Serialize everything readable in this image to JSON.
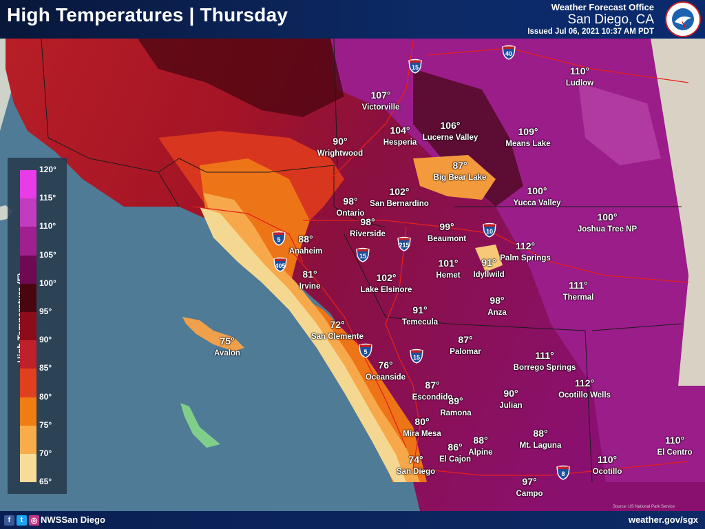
{
  "header": {
    "title": "High Temperatures  |  Thursday",
    "office": "Weather Forecast Office",
    "city": "San Diego, CA",
    "issued": "Issued Jul 06, 2021 10:37 AM PDT"
  },
  "logo": {
    "name": "nws-logo",
    "ring_text": "NATIONAL WEATHER SERVICE"
  },
  "legend": {
    "title": "High Temperature (F)",
    "ticks": [
      "120°",
      "115°",
      "110°",
      "105°",
      "100°",
      "95°",
      "90°",
      "85°",
      "80°",
      "75°",
      "70°",
      "65°"
    ],
    "colors": [
      "#e83ce8",
      "#c23cc0",
      "#a0208f",
      "#6e0a52",
      "#4a0610",
      "#8c0c1c",
      "#c0202a",
      "#e0401e",
      "#f07c14",
      "#f9ad4a",
      "#f6dc96",
      "#8fd986"
    ]
  },
  "footer": {
    "handle": "NWSSan Diego",
    "url": "weather.gov/sgx",
    "credit": "Source: US National Park Service"
  },
  "interstates": [
    "15",
    "40",
    "10",
    "215",
    "5",
    "405",
    "15",
    "5",
    "15",
    "8"
  ],
  "cities": [
    {
      "name": "Ludlow",
      "temp": "110°"
    },
    {
      "name": "Victorville",
      "temp": "107°"
    },
    {
      "name": "Hesperia",
      "temp": "104°"
    },
    {
      "name": "Lucerne Valley",
      "temp": "106°"
    },
    {
      "name": "Means Lake",
      "temp": "109°"
    },
    {
      "name": "Wrightwood",
      "temp": "90°"
    },
    {
      "name": "Big Bear Lake",
      "temp": "87°"
    },
    {
      "name": "San Bernardino",
      "temp": "102°"
    },
    {
      "name": "Yucca Valley",
      "temp": "100°"
    },
    {
      "name": "Ontario",
      "temp": "98°"
    },
    {
      "name": "Riverside",
      "temp": "98°"
    },
    {
      "name": "Joshua Tree NP",
      "temp": "100°"
    },
    {
      "name": "Anaheim",
      "temp": "88°"
    },
    {
      "name": "Beaumont",
      "temp": "99°"
    },
    {
      "name": "Palm Springs",
      "temp": "112°"
    },
    {
      "name": "Hemet",
      "temp": "101°"
    },
    {
      "name": "Idyllwild",
      "temp": "91°"
    },
    {
      "name": "Irvine",
      "temp": "81°"
    },
    {
      "name": "Lake Elsinore",
      "temp": "102°"
    },
    {
      "name": "Thermal",
      "temp": "111°"
    },
    {
      "name": "Anza",
      "temp": "98°"
    },
    {
      "name": "Temecula",
      "temp": "91°"
    },
    {
      "name": "San Clemente",
      "temp": "72°"
    },
    {
      "name": "Avalon",
      "temp": "75°"
    },
    {
      "name": "Palomar",
      "temp": "87°"
    },
    {
      "name": "Borrego Springs",
      "temp": "111°"
    },
    {
      "name": "Oceanside",
      "temp": "76°"
    },
    {
      "name": "Escondido",
      "temp": "87°"
    },
    {
      "name": "Ramona",
      "temp": "89°"
    },
    {
      "name": "Julian",
      "temp": "90°"
    },
    {
      "name": "Ocotillo Wells",
      "temp": "112°"
    },
    {
      "name": "Mira Mesa",
      "temp": "80°"
    },
    {
      "name": "El Cajon",
      "temp": "86°"
    },
    {
      "name": "Alpine",
      "temp": "88°"
    },
    {
      "name": "Mt. Laguna",
      "temp": "88°"
    },
    {
      "name": "El Centro",
      "temp": "110°"
    },
    {
      "name": "San Diego",
      "temp": "74°"
    },
    {
      "name": "Ocotillo",
      "temp": "110°"
    },
    {
      "name": "Campo",
      "temp": "97°"
    }
  ]
}
